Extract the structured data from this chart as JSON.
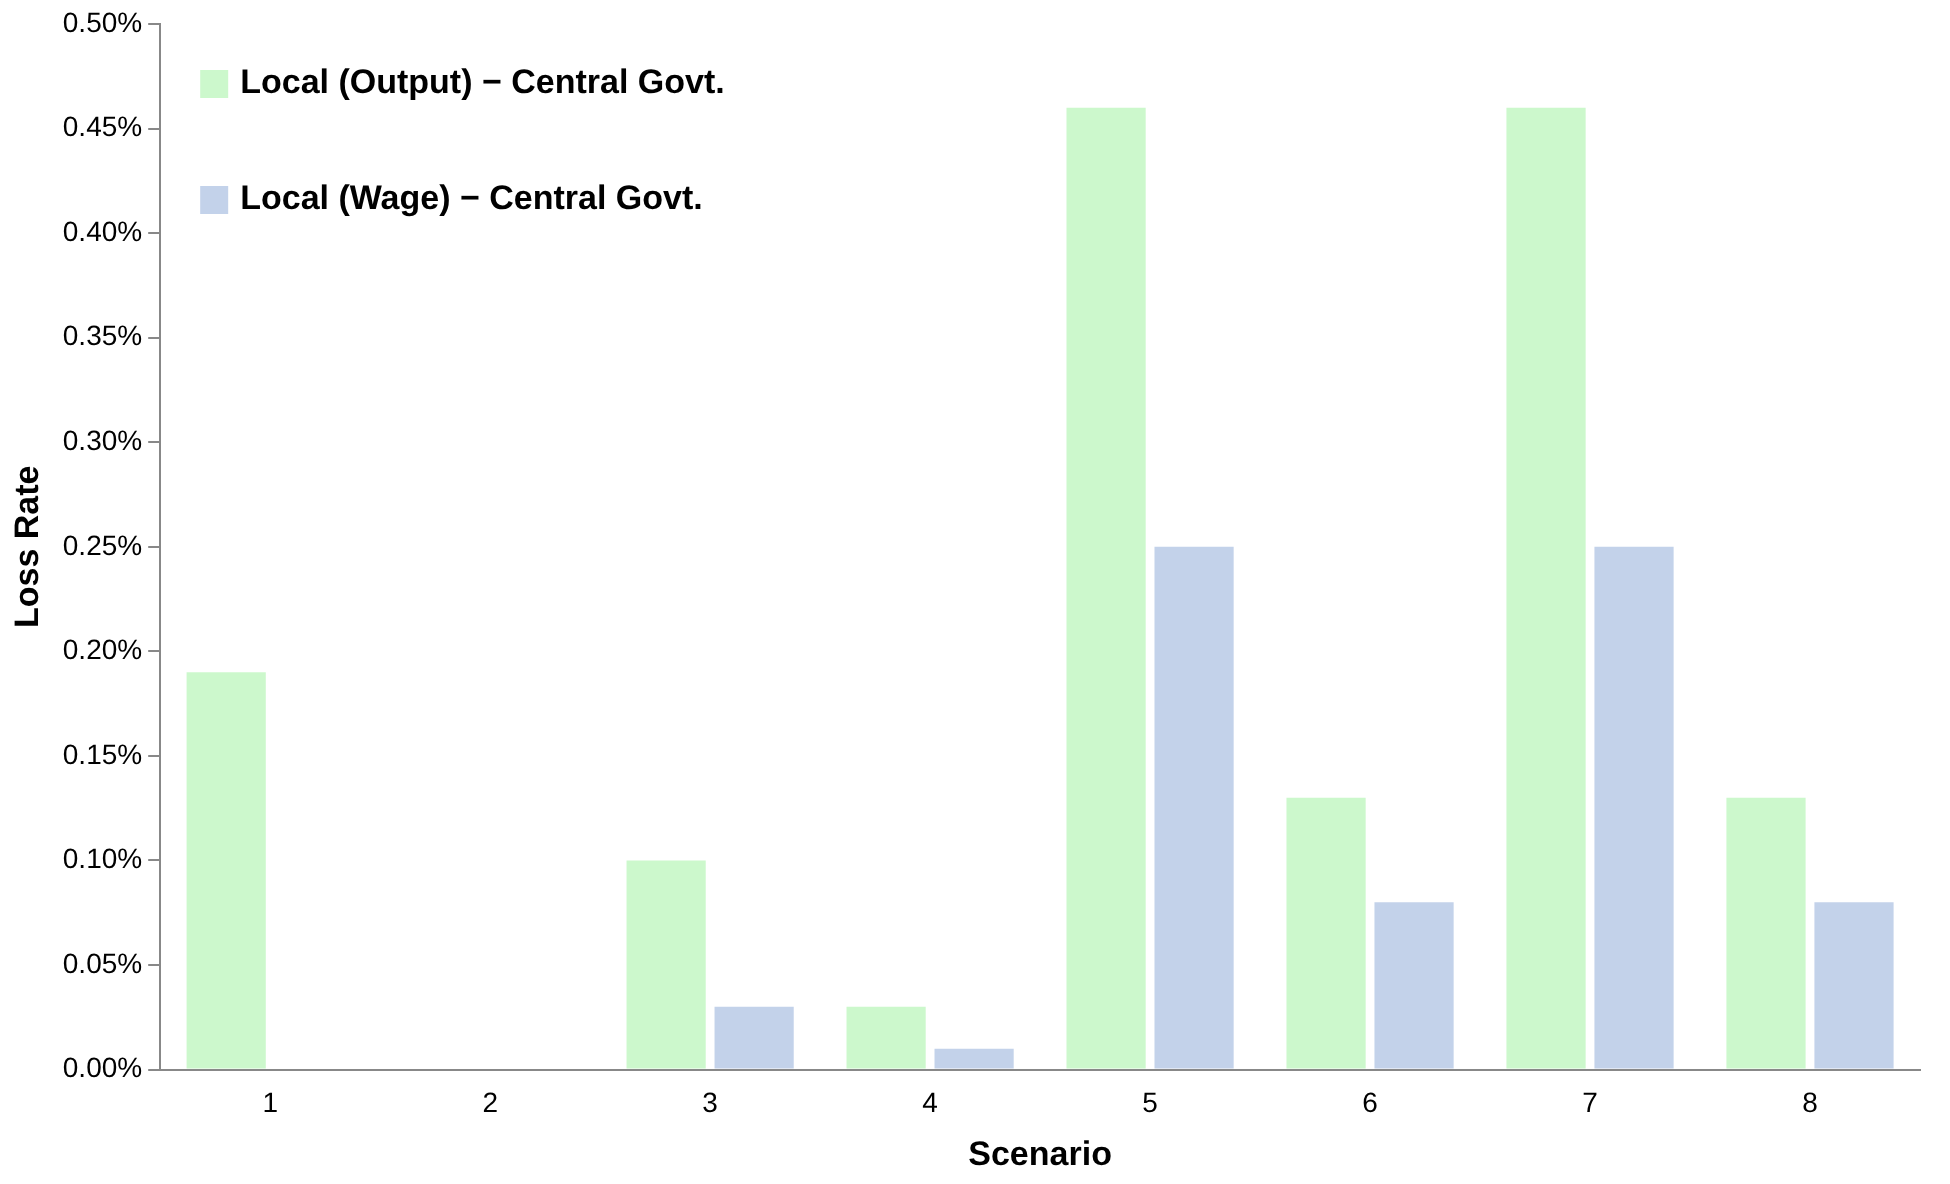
{
  "chart_data": {
    "type": "bar",
    "xlabel": "Scenario",
    "ylabel": "Loss Rate",
    "categories": [
      "1",
      "2",
      "3",
      "4",
      "5",
      "6",
      "7",
      "8"
    ],
    "series": [
      {
        "name": "Local (Output) − Central Govt.",
        "color": "#ccf8cc",
        "values": [
          0.19,
          0,
          0.1,
          0.03,
          0.46,
          0.13,
          0.46,
          0.13
        ]
      },
      {
        "name": "Local (Wage) − Central Govt.",
        "color": "#c3d2ea",
        "values": [
          0,
          0,
          0.03,
          0.01,
          0.25,
          0.08,
          0.25,
          0.08
        ]
      }
    ],
    "ylim": [
      0,
      0.5
    ],
    "yticks": [
      {
        "value": 0,
        "label": "0.00%"
      },
      {
        "value": 0.05,
        "label": "0.05%"
      },
      {
        "value": 0.1,
        "label": "0.10%"
      },
      {
        "value": 0.15,
        "label": "0.15%"
      },
      {
        "value": 0.2,
        "label": "0.20%"
      },
      {
        "value": 0.25,
        "label": "0.25%"
      },
      {
        "value": 0.3,
        "label": "0.30%"
      },
      {
        "value": 0.35,
        "label": "0.35%"
      },
      {
        "value": 0.4,
        "label": "0.40%"
      },
      {
        "value": 0.45,
        "label": "0.45%"
      },
      {
        "value": 0.5,
        "label": "0.50%"
      }
    ],
    "grid": false,
    "legend": "top left"
  }
}
